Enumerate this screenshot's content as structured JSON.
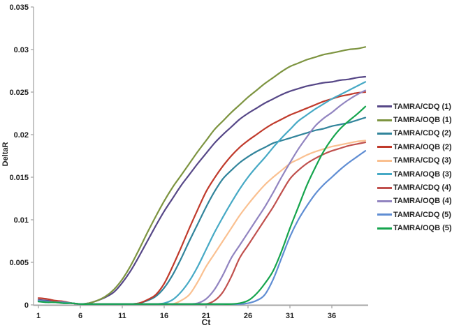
{
  "axes": {
    "y_title": "DeltaR",
    "x_title": "Ct",
    "y_tick_labels": [
      "0",
      "0.005",
      "0.01",
      "0.015",
      "0.02",
      "0.025",
      "0.03",
      "0.035"
    ],
    "y_tick_values": [
      0,
      0.005,
      0.01,
      0.015,
      0.02,
      0.025,
      0.03,
      0.035
    ],
    "x_tick_labels": [
      "1",
      "6",
      "11",
      "16",
      "21",
      "26",
      "31",
      "36"
    ],
    "x_tick_values": [
      1,
      6,
      11,
      16,
      21,
      26,
      31,
      36
    ],
    "axis_color": "#a6a6a6",
    "label_color": "#1f1f1f"
  },
  "chart_data": {
    "type": "line",
    "title": "",
    "xlabel": "Ct",
    "ylabel": "DeltaR",
    "xlim": [
      1,
      40
    ],
    "ylim": [
      0,
      0.035
    ],
    "grid": false,
    "legend_position": "right",
    "x": [
      1,
      2,
      3,
      4,
      5,
      6,
      7,
      8,
      9,
      10,
      11,
      12,
      13,
      14,
      15,
      16,
      17,
      18,
      19,
      20,
      21,
      22,
      23,
      24,
      25,
      26,
      27,
      28,
      29,
      30,
      31,
      32,
      33,
      34,
      35,
      36,
      37,
      38,
      39,
      40
    ],
    "series": [
      {
        "name": "TAMRA/CDQ (1)",
        "color": "#564787",
        "values": [
          0.0006,
          0.0005,
          0.0004,
          0.0003,
          0.0002,
          0.0001,
          0.0002,
          0.0005,
          0.0009,
          0.0015,
          0.0026,
          0.004,
          0.0057,
          0.0075,
          0.0093,
          0.011,
          0.0125,
          0.014,
          0.0153,
          0.0166,
          0.0178,
          0.019,
          0.02,
          0.0209,
          0.0218,
          0.0225,
          0.0231,
          0.0237,
          0.0242,
          0.0247,
          0.0251,
          0.0254,
          0.0257,
          0.0259,
          0.0261,
          0.0262,
          0.0264,
          0.0265,
          0.0267,
          0.0268
        ]
      },
      {
        "name": "TAMRA/OQB (1)",
        "color": "#7d9440",
        "values": [
          0.0005,
          0.0004,
          0.0004,
          0.0003,
          0.0002,
          0.0001,
          0.0002,
          0.0005,
          0.001,
          0.0018,
          0.003,
          0.0046,
          0.0065,
          0.0085,
          0.0104,
          0.0122,
          0.0138,
          0.0152,
          0.0166,
          0.018,
          0.0193,
          0.0206,
          0.0216,
          0.0226,
          0.0235,
          0.0244,
          0.0252,
          0.026,
          0.0267,
          0.0274,
          0.028,
          0.0284,
          0.0288,
          0.0291,
          0.0294,
          0.0296,
          0.0298,
          0.03,
          0.0301,
          0.0303
        ]
      },
      {
        "name": "TAMRA/CDQ (2)",
        "color": "#31849b",
        "values": [
          0.0005,
          0.0004,
          0.0004,
          0.0003,
          0.0002,
          0.0001,
          0.0001,
          0.0001,
          0.0001,
          0.0001,
          0.0001,
          0.0001,
          0.0002,
          0.0005,
          0.001,
          0.002,
          0.0035,
          0.0054,
          0.0075,
          0.0095,
          0.0115,
          0.0133,
          0.0148,
          0.0158,
          0.0167,
          0.0174,
          0.018,
          0.0185,
          0.019,
          0.0193,
          0.0196,
          0.0199,
          0.0202,
          0.0205,
          0.0207,
          0.021,
          0.0212,
          0.0214,
          0.0217,
          0.022
        ]
      },
      {
        "name": "TAMRA/OQB (2)",
        "color": "#c03a2b",
        "values": [
          0.0008,
          0.0007,
          0.0005,
          0.0004,
          0.0002,
          0.0001,
          0.0001,
          0.0001,
          0.0001,
          0.0001,
          0.0001,
          0.0001,
          0.0002,
          0.0006,
          0.0012,
          0.0025,
          0.0045,
          0.0067,
          0.009,
          0.0112,
          0.0133,
          0.0149,
          0.0163,
          0.0175,
          0.0185,
          0.0193,
          0.02,
          0.0207,
          0.0213,
          0.0218,
          0.0223,
          0.0227,
          0.0231,
          0.0235,
          0.0239,
          0.0242,
          0.0245,
          0.0247,
          0.0249,
          0.025
        ]
      },
      {
        "name": "TAMRA/CDQ (3)",
        "color": "#fac090",
        "values": [
          0.0004,
          0.0004,
          0.0003,
          0.0003,
          0.0002,
          0.0001,
          0.0001,
          0.0001,
          0.0001,
          0.0001,
          0.0001,
          0.0001,
          0.0001,
          0.0001,
          0.0001,
          0.0001,
          0.0001,
          0.0005,
          0.0012,
          0.0027,
          0.0045,
          0.006,
          0.0075,
          0.009,
          0.0105,
          0.0118,
          0.013,
          0.0141,
          0.015,
          0.0158,
          0.0166,
          0.0171,
          0.0176,
          0.018,
          0.0183,
          0.0186,
          0.0188,
          0.019,
          0.0192,
          0.0193
        ]
      },
      {
        "name": "TAMRA/OQB (3)",
        "color": "#46a9c5",
        "values": [
          0.0004,
          0.0004,
          0.0003,
          0.0002,
          0.0002,
          0.0001,
          0.0001,
          0.0001,
          0.0001,
          0.0001,
          0.0001,
          0.0001,
          0.0001,
          0.0001,
          0.0001,
          0.0002,
          0.0006,
          0.0015,
          0.0028,
          0.0045,
          0.0065,
          0.0085,
          0.0103,
          0.012,
          0.0136,
          0.015,
          0.0162,
          0.0173,
          0.0185,
          0.0196,
          0.0206,
          0.0216,
          0.0223,
          0.023,
          0.0236,
          0.0242,
          0.0247,
          0.0252,
          0.0257,
          0.0262
        ]
      },
      {
        "name": "TAMRA/CDQ (4)",
        "color": "#c0504d",
        "values": [
          0.0005,
          0.0004,
          0.0004,
          0.0003,
          0.0002,
          0.0001,
          0.0001,
          0.0001,
          0.0001,
          0.0001,
          0.0001,
          0.0001,
          0.0001,
          0.0001,
          0.0001,
          0.0001,
          0.0001,
          0.0001,
          0.0001,
          0.0001,
          0.0001,
          0.0005,
          0.0015,
          0.0033,
          0.0055,
          0.007,
          0.0085,
          0.01,
          0.0115,
          0.0132,
          0.0148,
          0.0158,
          0.0166,
          0.0172,
          0.0177,
          0.0181,
          0.0184,
          0.0187,
          0.0189,
          0.0191
        ]
      },
      {
        "name": "TAMRA/OQB (4)",
        "color": "#9184c0",
        "values": [
          0.0004,
          0.0004,
          0.0003,
          0.0003,
          0.0002,
          0.0001,
          0.0001,
          0.0001,
          0.0001,
          0.0001,
          0.0001,
          0.0001,
          0.0001,
          0.0001,
          0.0001,
          0.0001,
          0.0001,
          0.0001,
          0.0001,
          0.0002,
          0.0007,
          0.0018,
          0.0035,
          0.0055,
          0.007,
          0.0085,
          0.01,
          0.0115,
          0.0132,
          0.015,
          0.0167,
          0.0183,
          0.0197,
          0.021,
          0.0219,
          0.0226,
          0.0234,
          0.0241,
          0.0247,
          0.0252
        ]
      },
      {
        "name": "TAMRA/CDQ (5)",
        "color": "#5f8dd3",
        "values": [
          0.0005,
          0.0004,
          0.0003,
          0.0003,
          0.0002,
          0.0001,
          0.0001,
          0.0001,
          0.0001,
          0.0001,
          0.0001,
          0.0001,
          0.0001,
          0.0001,
          0.0001,
          0.0001,
          0.0001,
          0.0001,
          0.0001,
          0.0001,
          0.0001,
          0.0001,
          0.0001,
          0.0001,
          0.0001,
          0.0002,
          0.0005,
          0.0012,
          0.003,
          0.0055,
          0.008,
          0.01,
          0.0116,
          0.013,
          0.0141,
          0.015,
          0.0159,
          0.0167,
          0.0174,
          0.0181
        ]
      },
      {
        "name": "TAMRA/OQB (5)",
        "color": "#15a44d",
        "values": [
          0.0004,
          0.0003,
          0.0003,
          0.0002,
          0.0002,
          0.0001,
          0.0001,
          0.0001,
          0.0001,
          0.0001,
          0.0001,
          0.0001,
          0.0001,
          0.0001,
          0.0001,
          0.0001,
          0.0001,
          0.0001,
          0.0001,
          0.0001,
          0.0001,
          0.0001,
          0.0001,
          0.0001,
          0.0002,
          0.0005,
          0.0013,
          0.0025,
          0.004,
          0.0063,
          0.009,
          0.0115,
          0.014,
          0.0161,
          0.018,
          0.0195,
          0.0207,
          0.0216,
          0.0224,
          0.0233
        ]
      }
    ]
  }
}
